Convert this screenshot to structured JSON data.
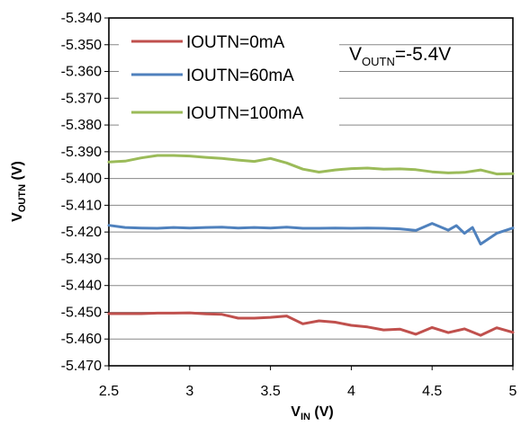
{
  "chart_data": {
    "type": "line",
    "xlabel_main": "V",
    "xlabel_sub": "IN",
    "xlabel_unit": " (V)",
    "ylabel_main": "V",
    "ylabel_sub": "OUTN",
    "ylabel_unit": " (V)",
    "xlim": [
      2.5,
      5
    ],
    "ylim": [
      -5.47,
      -5.34
    ],
    "xticks": [
      2.5,
      3,
      3.5,
      4,
      4.5,
      5
    ],
    "xtick_labels": [
      "2.5",
      "3",
      "3.5",
      "4",
      "4.5",
      "5"
    ],
    "yticks": [
      -5.34,
      -5.35,
      -5.36,
      -5.37,
      -5.38,
      -5.39,
      -5.4,
      -5.41,
      -5.42,
      -5.43,
      -5.44,
      -5.45,
      -5.46,
      -5.47
    ],
    "ytick_labels": [
      "-5.340",
      "-5.350",
      "-5.360",
      "-5.370",
      "-5.380",
      "-5.390",
      "-5.400",
      "-5.410",
      "-5.420",
      "-5.430",
      "-5.440",
      "-5.450",
      "-5.460",
      "-5.470"
    ],
    "grid": "horizontal",
    "legend_position": "top-left",
    "annotation": {
      "main": "V",
      "sub": "OUTN",
      "rest": "=-5.4V"
    },
    "series": [
      {
        "name": "IOUTN=0mA",
        "color": "#c0504d",
        "x": [
          2.5,
          2.6,
          2.7,
          2.8,
          2.9,
          3.0,
          3.1,
          3.2,
          3.3,
          3.4,
          3.5,
          3.6,
          3.7,
          3.8,
          3.9,
          4.0,
          4.1,
          4.2,
          4.3,
          4.4,
          4.5,
          4.6,
          4.7,
          4.8,
          4.9,
          5.0
        ],
        "y": [
          -5.4505,
          -5.4505,
          -5.4505,
          -5.4503,
          -5.4503,
          -5.4502,
          -5.4506,
          -5.4508,
          -5.4522,
          -5.4522,
          -5.4519,
          -5.4514,
          -5.4543,
          -5.4532,
          -5.4537,
          -5.4549,
          -5.4555,
          -5.4566,
          -5.4563,
          -5.4582,
          -5.4557,
          -5.4576,
          -5.4562,
          -5.4586,
          -5.4558,
          -5.4575
        ]
      },
      {
        "name": "IOUTN=60mA",
        "color": "#4f81bd",
        "x": [
          2.5,
          2.6,
          2.7,
          2.8,
          2.9,
          3.0,
          3.1,
          3.2,
          3.3,
          3.4,
          3.5,
          3.6,
          3.7,
          3.8,
          3.9,
          4.0,
          4.1,
          4.2,
          4.3,
          4.4,
          4.5,
          4.6,
          4.65,
          4.7,
          4.75,
          4.8,
          4.9,
          5.0
        ],
        "y": [
          -5.4175,
          -5.4183,
          -5.4185,
          -5.4186,
          -5.4183,
          -5.4185,
          -5.4183,
          -5.4182,
          -5.4185,
          -5.4183,
          -5.4185,
          -5.4182,
          -5.4186,
          -5.4186,
          -5.4185,
          -5.4186,
          -5.4185,
          -5.4186,
          -5.4188,
          -5.4194,
          -5.4168,
          -5.4193,
          -5.4176,
          -5.4205,
          -5.4183,
          -5.4245,
          -5.4205,
          -5.4185
        ]
      },
      {
        "name": "IOUTN=100mA",
        "color": "#9bbb59",
        "x": [
          2.5,
          2.6,
          2.7,
          2.8,
          2.9,
          3.0,
          3.1,
          3.2,
          3.3,
          3.4,
          3.5,
          3.6,
          3.7,
          3.8,
          3.9,
          4.0,
          4.1,
          4.2,
          4.3,
          4.4,
          4.5,
          4.6,
          4.7,
          4.8,
          4.9,
          5.0
        ],
        "y": [
          -5.3938,
          -5.3935,
          -5.3923,
          -5.3914,
          -5.3914,
          -5.3916,
          -5.3921,
          -5.3925,
          -5.3931,
          -5.3936,
          -5.3925,
          -5.3942,
          -5.3965,
          -5.3976,
          -5.3968,
          -5.3963,
          -5.3961,
          -5.3965,
          -5.3964,
          -5.3967,
          -5.3975,
          -5.3979,
          -5.3977,
          -5.3968,
          -5.3983,
          -5.3982
        ]
      }
    ]
  }
}
